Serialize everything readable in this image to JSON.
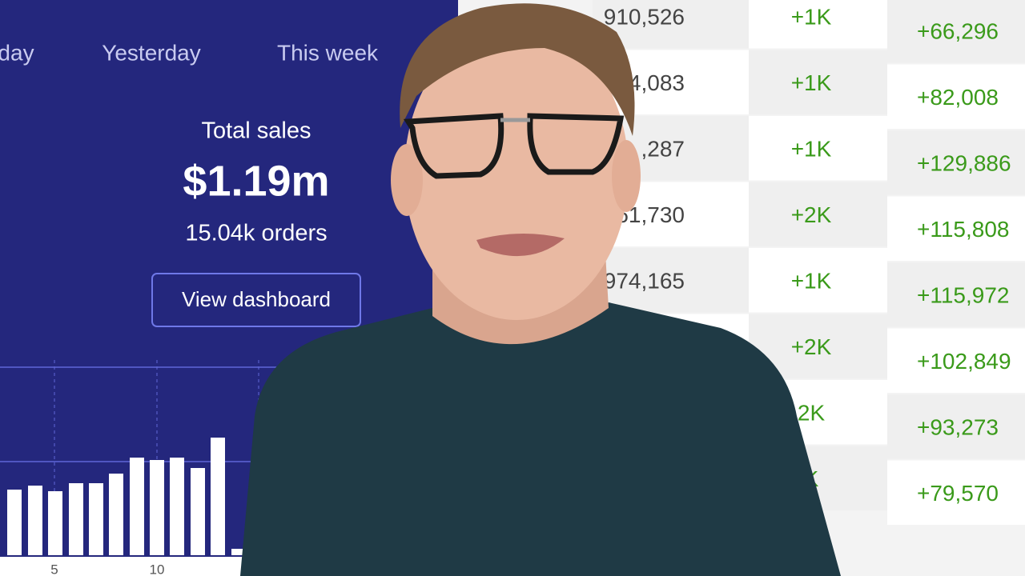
{
  "tabs": [
    "day",
    "Yesterday",
    "This week"
  ],
  "summary": {
    "label": "Total sales",
    "amount": "$1.19m",
    "orders": "15.04k orders",
    "button": "View dashboard"
  },
  "chart": {
    "x_labels": [
      "5",
      "10"
    ]
  },
  "table": {
    "rows": [
      [
        "910,526",
        "+1K",
        "+66,296"
      ],
      [
        "4,083",
        "+1K",
        "+82,008"
      ],
      [
        ",287",
        "+1K",
        "+129,886"
      ],
      [
        "61,730",
        "+2K",
        "+115,808"
      ],
      [
        "974,165",
        "+1K",
        "+115,972"
      ],
      [
        "",
        "+2K",
        "+102,849"
      ],
      [
        "",
        "2K",
        "+93,273"
      ],
      [
        "",
        "K",
        "+79,570"
      ]
    ]
  }
}
